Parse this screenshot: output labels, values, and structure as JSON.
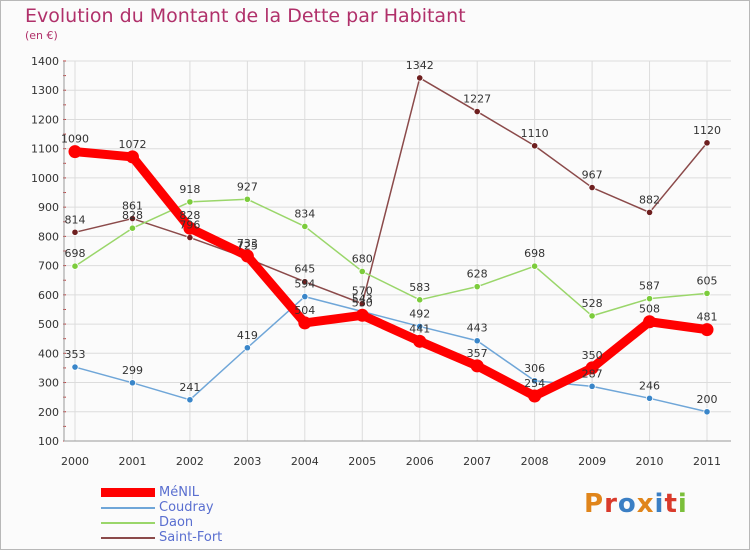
{
  "header": {
    "title": "Evolution du Montant de la Dette par Habitant",
    "unit": "(en €)"
  },
  "logo": {
    "text": "Proxiti",
    "colors": [
      "#e0851b",
      "#d93a2b",
      "#3b7fc4",
      "#e0851b",
      "#3b7fc4",
      "#d93a2b",
      "#7bbf3a"
    ]
  },
  "chart_data": {
    "type": "line",
    "title": "Evolution du Montant de la Dette par Habitant",
    "ylabel": "(en €)",
    "xlabel": "",
    "ylim": [
      100,
      1400
    ],
    "yticks": [
      100,
      200,
      300,
      400,
      500,
      600,
      700,
      800,
      900,
      1000,
      1100,
      1200,
      1300,
      1400
    ],
    "categories": [
      "2000",
      "2001",
      "2002",
      "2003",
      "2004",
      "2005",
      "2006",
      "2007",
      "2008",
      "2009",
      "2010",
      "2011"
    ],
    "grid": true,
    "legend": "bottom-left",
    "series": [
      {
        "name": "MéNIL",
        "color": "#ff0000",
        "values": [
          1090,
          1072,
          828,
          733,
          504,
          530,
          441,
          357,
          254,
          350,
          508,
          481
        ]
      },
      {
        "name": "Coudray",
        "color": "#6fa6d8",
        "dot": "#3a86c9",
        "values": [
          353,
          299,
          241,
          419,
          594,
          543,
          492,
          443,
          306,
          287,
          246,
          200
        ]
      },
      {
        "name": "Daon",
        "color": "#9ad66a",
        "dot": "#7ccc3c",
        "values": [
          698,
          828,
          918,
          927,
          834,
          680,
          583,
          628,
          698,
          528,
          587,
          605
        ]
      },
      {
        "name": "Saint-Fort",
        "color": "#8b4a4a",
        "dot": "#6e1f1f",
        "values": [
          814,
          861,
          796,
          725,
          645,
          570,
          1342,
          1227,
          1110,
          967,
          882,
          1120
        ]
      }
    ]
  }
}
